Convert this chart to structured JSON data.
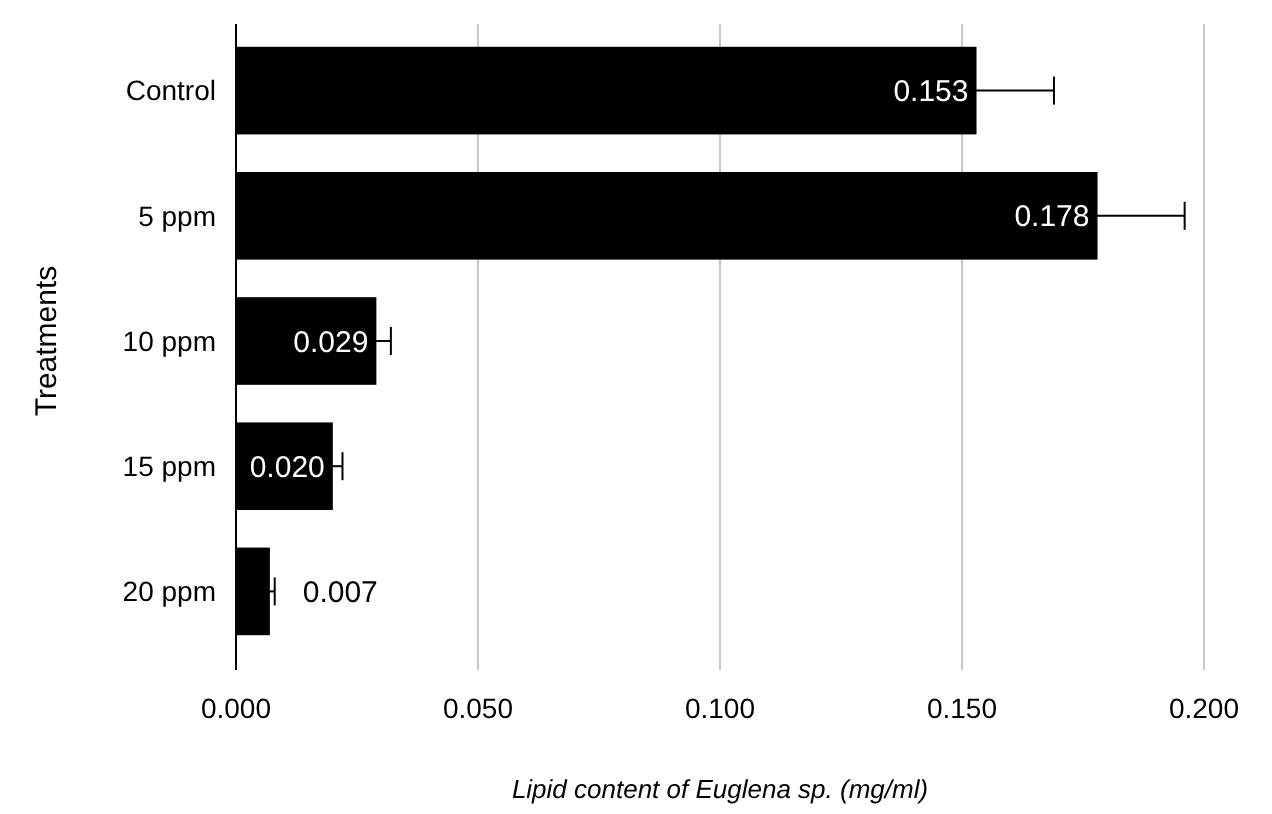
{
  "chart_data": {
    "type": "bar",
    "orientation": "horizontal",
    "xlabel": "Lipid content of Euglena sp. (mg/ml)",
    "ylabel": "Treatments",
    "categories": [
      "Control",
      "5 ppm",
      "10 ppm",
      "15 ppm",
      "20 ppm"
    ],
    "values": [
      0.153,
      0.178,
      0.029,
      0.02,
      0.007
    ],
    "value_labels": [
      "0.153",
      "0.178",
      "0.029",
      "0.020",
      "0.007"
    ],
    "errors": [
      0.016,
      0.018,
      0.003,
      0.002,
      0.001
    ],
    "color": "#000000",
    "xlim": [
      0,
      0.2
    ],
    "xticks": [
      {
        "value": 0,
        "label": "0.000"
      },
      {
        "value": 0.05,
        "label": "0.050"
      },
      {
        "value": 0.1,
        "label": "0.100"
      },
      {
        "value": 0.15,
        "label": "0.150"
      },
      {
        "value": 0.2,
        "label": "0.200"
      }
    ],
    "grid": "x"
  }
}
